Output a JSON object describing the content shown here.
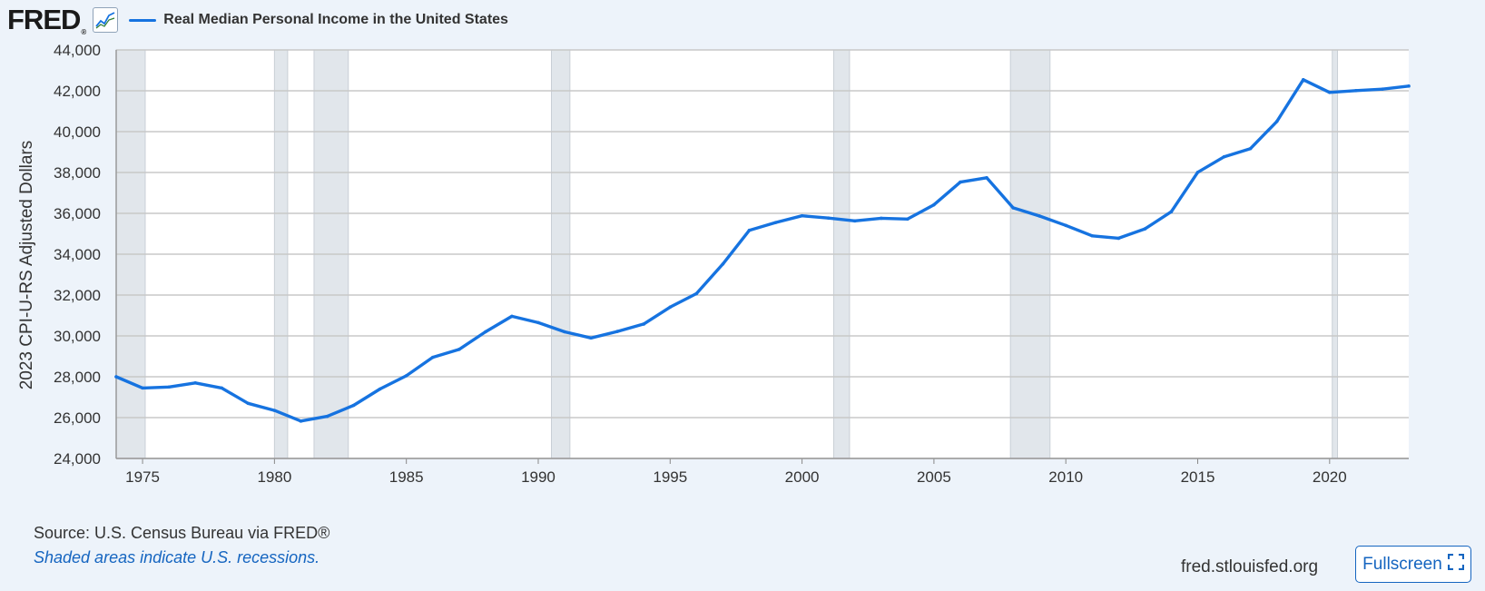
{
  "header": {
    "logo_text": "FRED",
    "logo_reg": "®",
    "series_title": "Real Median Personal Income in the United States"
  },
  "footer": {
    "source": "Source: U.S. Census Bureau via FRED®",
    "note": "Shaded areas indicate U.S. recessions.",
    "url": "fred.stlouisfed.org",
    "fullscreen_label": "Fullscreen"
  },
  "colors": {
    "line": "#1673e0",
    "recession": "#e1e6eb",
    "grid": "#c8c8c8",
    "background": "#edf3fa"
  },
  "chart_data": {
    "type": "line",
    "title": "Real Median Personal Income in the United States",
    "xlabel": "",
    "ylabel": "2023 CPI-U-RS Adjusted Dollars",
    "xlim": [
      1974,
      2023
    ],
    "ylim": [
      24000,
      44000
    ],
    "grid": true,
    "x_ticks": [
      1975,
      1980,
      1985,
      1990,
      1995,
      2000,
      2005,
      2010,
      2015,
      2020
    ],
    "y_ticks": [
      24000,
      26000,
      28000,
      30000,
      32000,
      34000,
      36000,
      38000,
      40000,
      42000,
      44000
    ],
    "y_tick_labels": [
      "24,000",
      "26,000",
      "28,000",
      "30,000",
      "32,000",
      "34,000",
      "36,000",
      "38,000",
      "40,000",
      "42,000",
      "44,000"
    ],
    "recessions": [
      [
        1974.0,
        1975.1
      ],
      [
        1980.0,
        1980.5
      ],
      [
        1981.5,
        1982.8
      ],
      [
        1990.5,
        1991.2
      ],
      [
        2001.2,
        2001.8
      ],
      [
        2007.9,
        2009.4
      ],
      [
        2020.1,
        2020.3
      ]
    ],
    "series": [
      {
        "name": "Real Median Personal Income in the United States",
        "x": [
          1974,
          1975,
          1976,
          1977,
          1978,
          1979,
          1980,
          1981,
          1982,
          1983,
          1984,
          1985,
          1986,
          1987,
          1988,
          1989,
          1990,
          1991,
          1992,
          1993,
          1994,
          1995,
          1996,
          1997,
          1998,
          1999,
          2000,
          2001,
          2002,
          2003,
          2004,
          2005,
          2006,
          2007,
          2008,
          2009,
          2010,
          2011,
          2012,
          2013,
          2014,
          2015,
          2016,
          2017,
          2018,
          2019,
          2020,
          2021,
          2022,
          2023
        ],
        "values": [
          28000,
          27450,
          27500,
          27700,
          27450,
          26700,
          26350,
          25830,
          26060,
          26600,
          27400,
          28050,
          28950,
          29340,
          30200,
          30960,
          30650,
          30200,
          29900,
          30220,
          30580,
          31410,
          32070,
          33520,
          35170,
          35550,
          35880,
          35770,
          35630,
          35760,
          35720,
          36420,
          37530,
          37740,
          36270,
          35870,
          35410,
          34900,
          34780,
          35240,
          36080,
          38010,
          38770,
          39170,
          40500,
          42540,
          41920,
          42010,
          42080,
          42230
        ]
      }
    ]
  }
}
